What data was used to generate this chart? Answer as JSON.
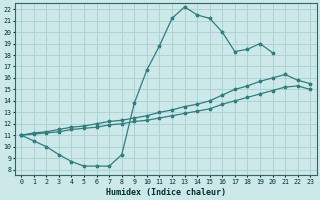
{
  "xlabel": "Humidex (Indice chaleur)",
  "bg_color": "#cce8e8",
  "grid_color": "#a8d0d0",
  "line_color": "#2e7f7f",
  "xlim": [
    -0.5,
    23.5
  ],
  "ylim": [
    7.5,
    22.5
  ],
  "xticks": [
    0,
    1,
    2,
    3,
    4,
    5,
    6,
    7,
    8,
    9,
    10,
    11,
    12,
    13,
    14,
    15,
    16,
    17,
    18,
    19,
    20,
    21,
    22,
    23
  ],
  "yticks": [
    8,
    9,
    10,
    11,
    12,
    13,
    14,
    15,
    16,
    17,
    18,
    19,
    20,
    21,
    22
  ],
  "line1_x": [
    0,
    1,
    2,
    3,
    4,
    5,
    6,
    7,
    8,
    9,
    10,
    11,
    12,
    13,
    14,
    15,
    16,
    17,
    18,
    19,
    20
  ],
  "line1_y": [
    11.0,
    10.5,
    10.0,
    9.3,
    8.7,
    8.3,
    8.3,
    8.3,
    9.3,
    13.8,
    16.7,
    18.8,
    21.2,
    22.2,
    21.5,
    21.2,
    20.0,
    18.3,
    18.5,
    19.0,
    18.2
  ],
  "line2_x": [
    0,
    1,
    2,
    3,
    4,
    5,
    6,
    7,
    8,
    9,
    10,
    11,
    12,
    13,
    14,
    15,
    16,
    17,
    18,
    19,
    20,
    21,
    22,
    23
  ],
  "line2_y": [
    11.0,
    11.2,
    11.3,
    11.5,
    11.7,
    11.8,
    12.0,
    12.2,
    12.3,
    12.5,
    12.7,
    13.0,
    13.2,
    13.5,
    13.7,
    14.0,
    14.5,
    15.0,
    15.3,
    15.7,
    16.0,
    16.3,
    15.8,
    15.5
  ],
  "line3_x": [
    0,
    1,
    2,
    3,
    4,
    5,
    6,
    7,
    8,
    9,
    10,
    11,
    12,
    13,
    14,
    15,
    16,
    17,
    18,
    19,
    20,
    21,
    22,
    23
  ],
  "line3_y": [
    11.0,
    11.1,
    11.2,
    11.3,
    11.5,
    11.6,
    11.7,
    11.9,
    12.0,
    12.2,
    12.3,
    12.5,
    12.7,
    12.9,
    13.1,
    13.3,
    13.7,
    14.0,
    14.3,
    14.6,
    14.9,
    15.2,
    15.3,
    15.0
  ]
}
